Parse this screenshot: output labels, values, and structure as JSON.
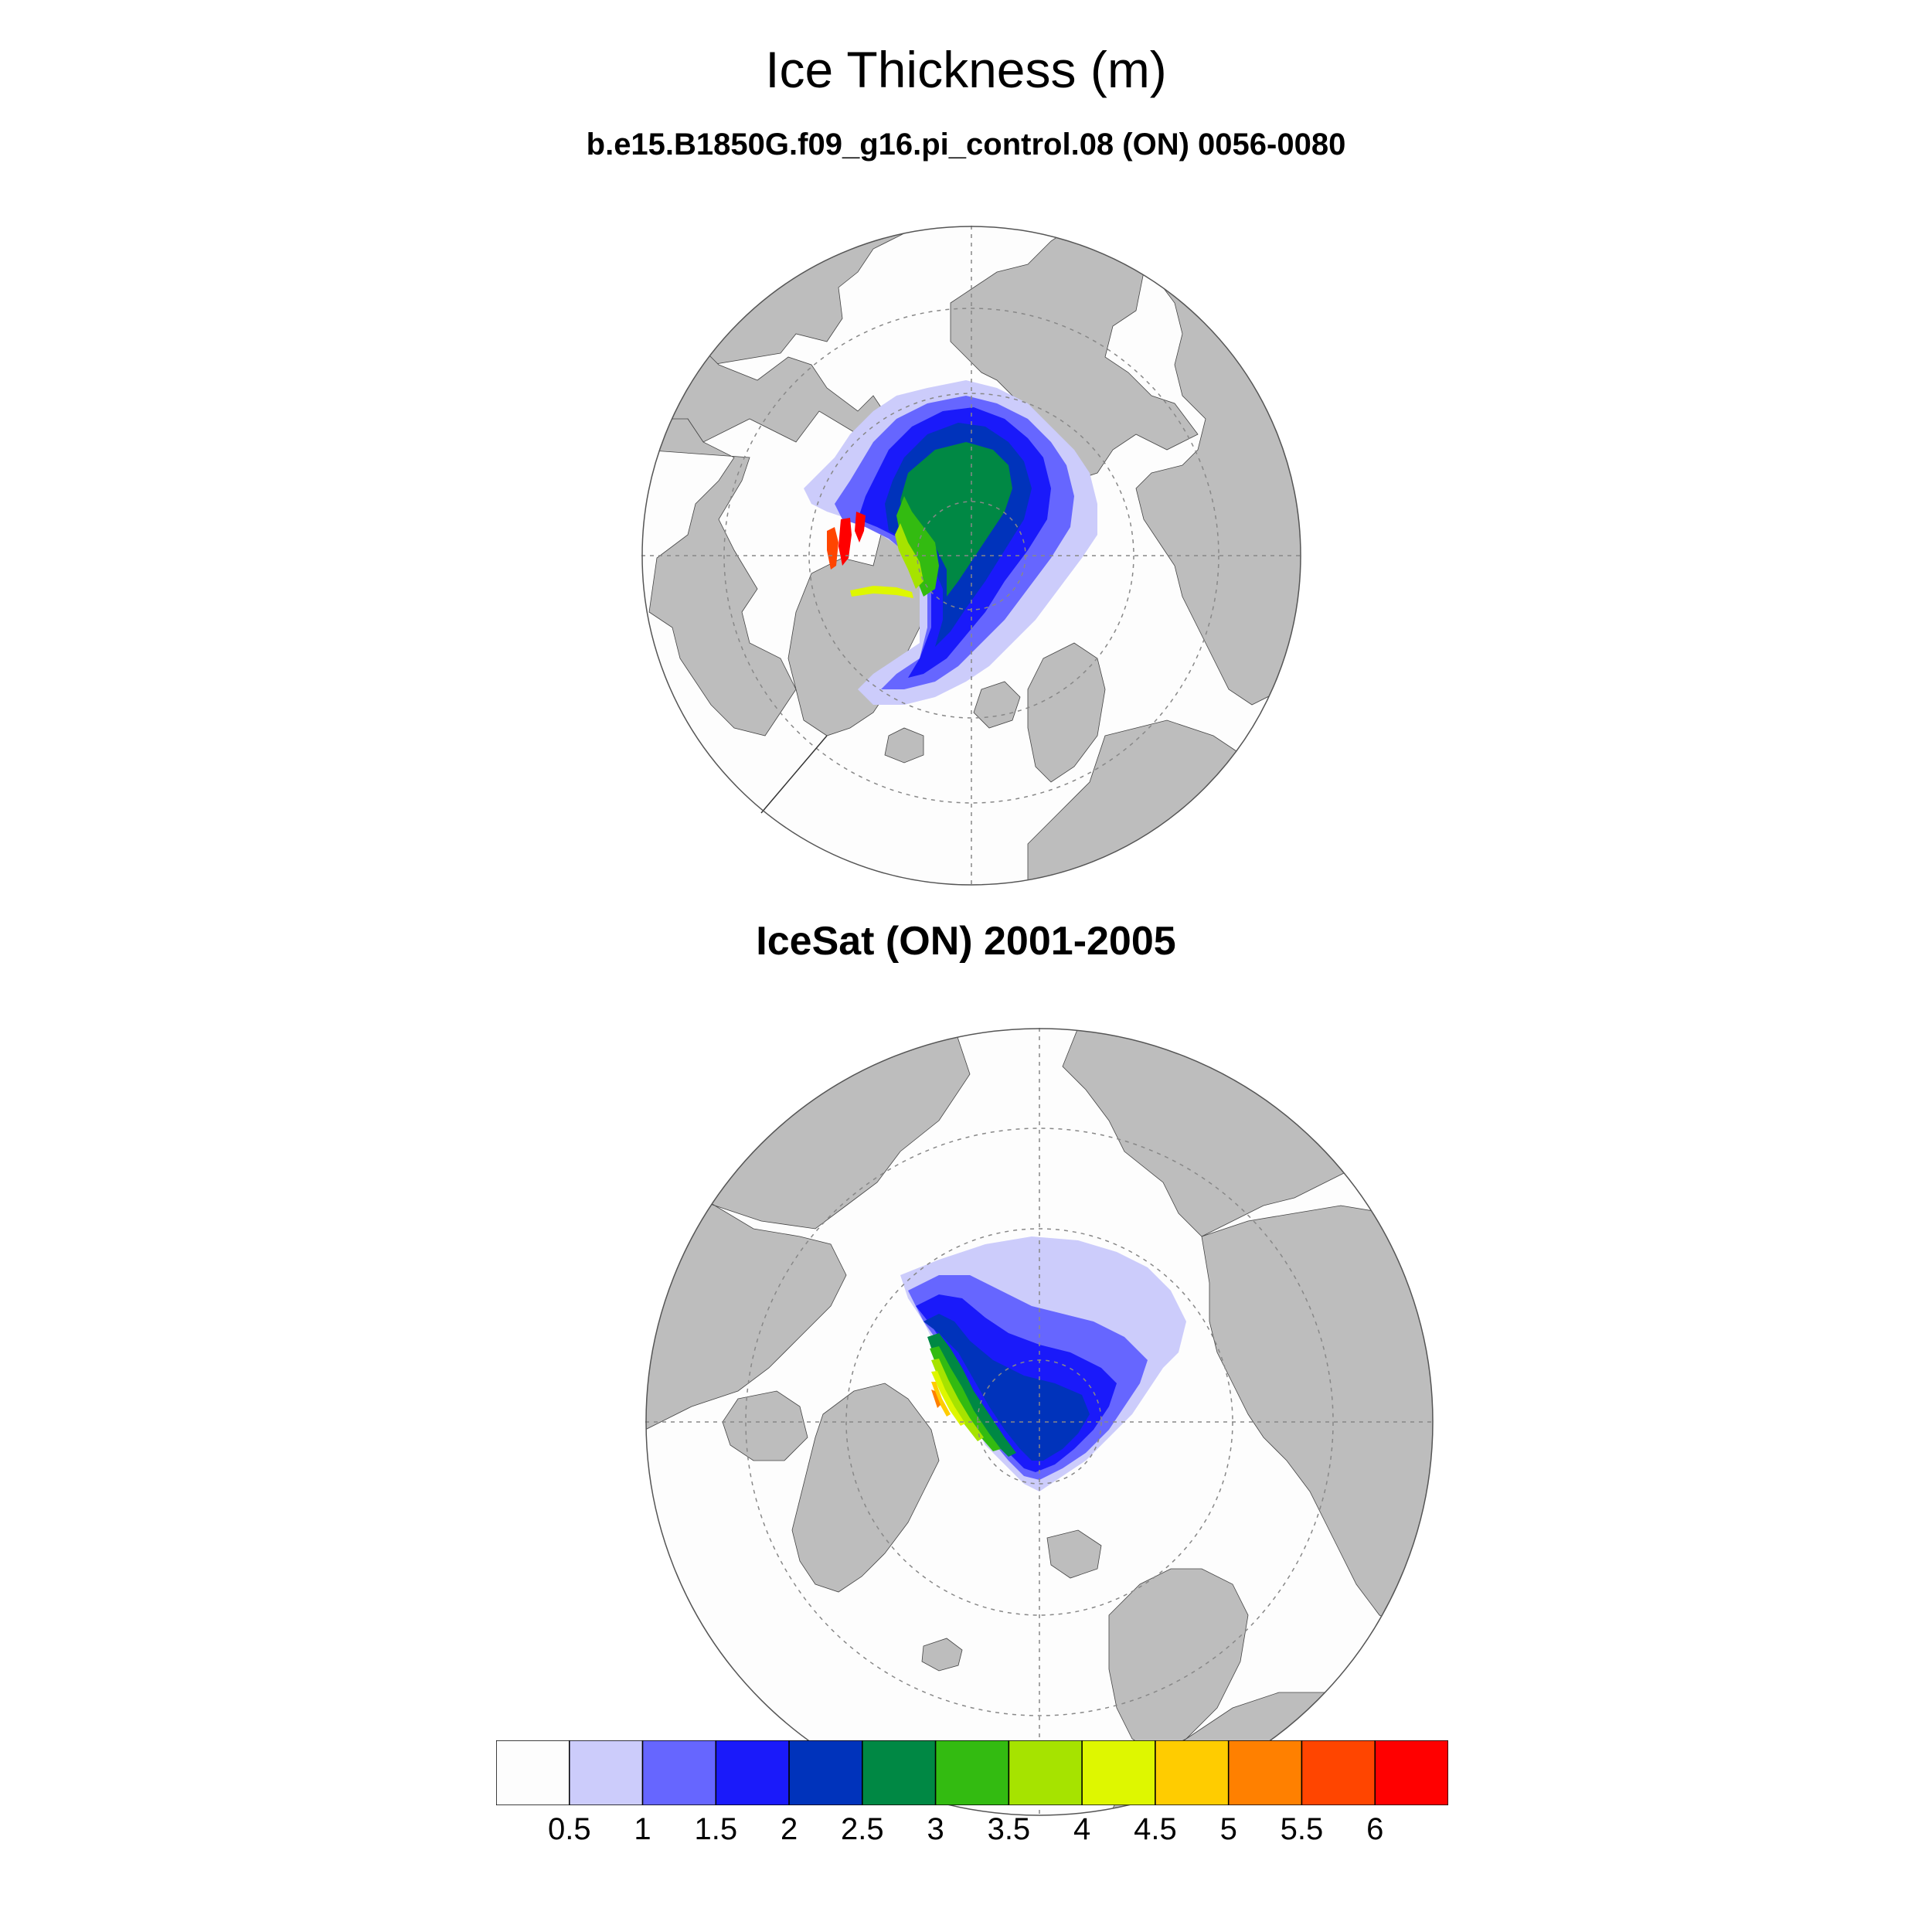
{
  "title": "Ice Thickness (m)",
  "panels": [
    {
      "subtitle": "b.e15.B1850G.f09_g16.pi_control.08 (ON) 0056-0080"
    },
    {
      "subtitle": "IceSat (ON) 2001-2005"
    }
  ],
  "colorbar": {
    "labels": [
      "0.5",
      "1",
      "1.5",
      "2",
      "2.5",
      "3",
      "3.5",
      "4",
      "4.5",
      "5",
      "5.5",
      "6"
    ],
    "colors": [
      "#fdfdfd",
      "#ccccfb",
      "#6666ff",
      "#1a1afa",
      "#0033bb",
      "#008844",
      "#33bb11",
      "#a6e300",
      "#def700",
      "#ffcc00",
      "#ff8000",
      "#ff4500",
      "#ff0000"
    ]
  },
  "map_colors": {
    "land": "#bdbdbd",
    "ocean": "#fdfdfd",
    "grid": "#888888"
  },
  "chart_data": {
    "type": "heatmap",
    "title": "Ice Thickness (m)",
    "projection": "north polar stereographic",
    "contour_levels": [
      0.5,
      1,
      1.5,
      2,
      2.5,
      3,
      3.5,
      4,
      4.5,
      5,
      5.5,
      6
    ],
    "panels": [
      {
        "subtitle": "b.e15.B1850G.f09_g16.pi_control.08 (ON) 0056-0080"
      },
      {
        "subtitle": "IceSat (ON) 2001-2005"
      }
    ]
  }
}
